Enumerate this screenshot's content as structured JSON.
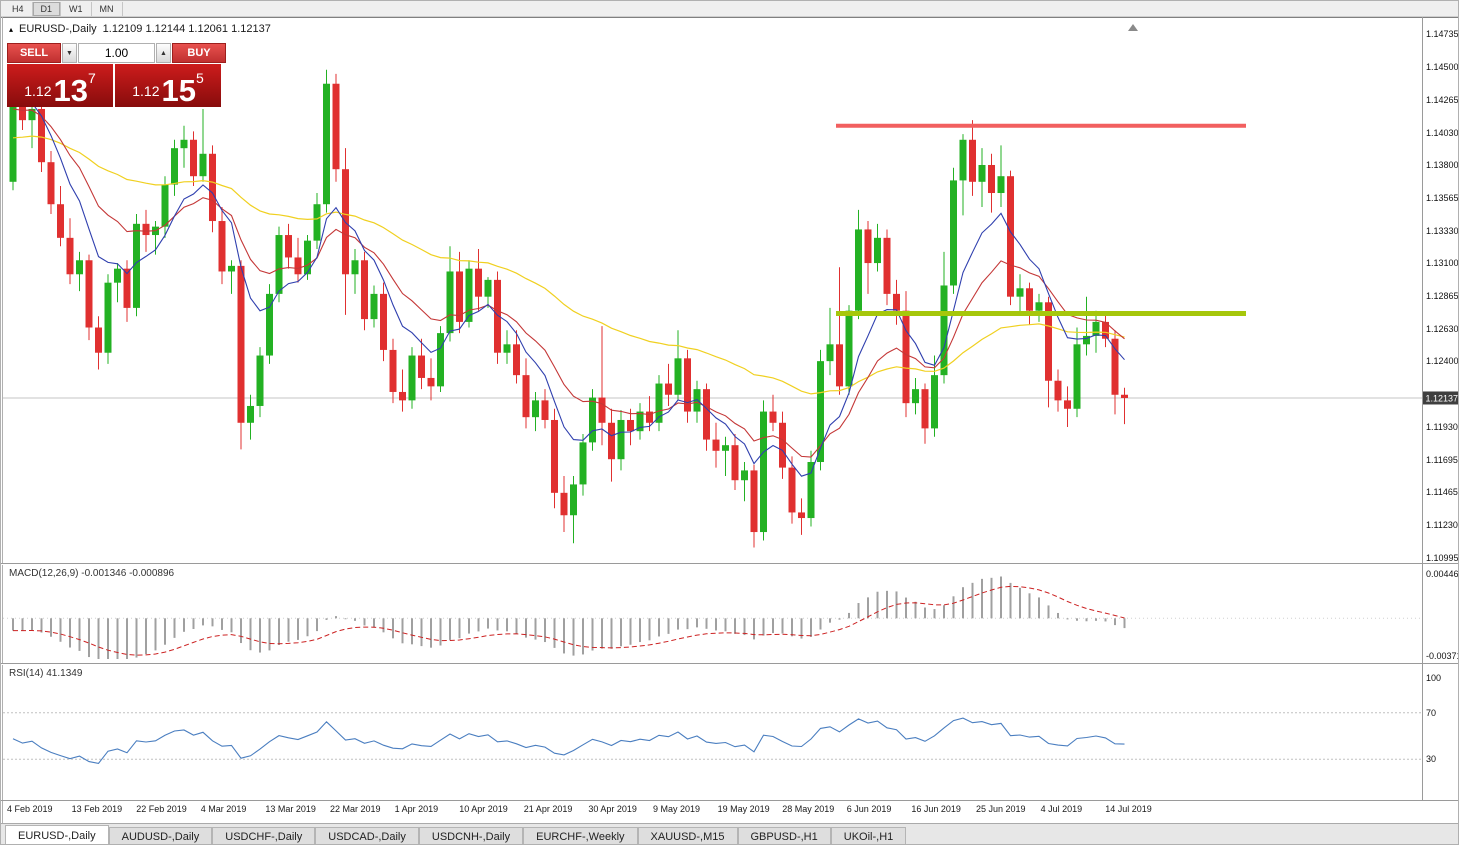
{
  "toolbar": {
    "timeframes": [
      {
        "label": "H4",
        "active": false
      },
      {
        "label": "D1",
        "active": true
      },
      {
        "label": "W1",
        "active": false
      },
      {
        "label": "MN",
        "active": false
      }
    ]
  },
  "chart": {
    "collapse_icon": "▴",
    "title": "EURUSD-,Daily",
    "ohlc": "1.12109 1.12144 1.12061 1.12137"
  },
  "trade_panel": {
    "sell_label": "SELL",
    "buy_label": "BUY",
    "volume": "1.00",
    "down_icon": "▼",
    "up_icon": "▲",
    "sell_quote": {
      "base": "1.12",
      "big": "13",
      "sup": "7"
    },
    "buy_quote": {
      "base": "1.12",
      "big": "15",
      "sup": "5"
    }
  },
  "price_axis": {
    "ticks": [
      "1.14735",
      "1.14500",
      "1.14265",
      "1.14030",
      "1.13800",
      "1.13565",
      "1.13330",
      "1.13100",
      "1.12865",
      "1.12630",
      "1.12400",
      "1.11930",
      "1.11695",
      "1.11465",
      "1.11230",
      "1.10995"
    ],
    "current_price": "1.12137"
  },
  "macd_panel": {
    "label": "MACD(12,26,9)",
    "value_main": "-0.001346",
    "value_signal": "-0.000896",
    "axis_top": "0.004465",
    "axis_bottom": "-0.003715"
  },
  "rsi_panel": {
    "label": "RSI(14)",
    "value": "41.1349",
    "axis_ticks": [
      "100",
      "70",
      "30"
    ]
  },
  "time_axis": {
    "labels": [
      "4 Feb 2019",
      "13 Feb 2019",
      "22 Feb 2019",
      "4 Mar 2019",
      "13 Mar 2019",
      "22 Mar 2019",
      "1 Apr 2019",
      "10 Apr 2019",
      "21 Apr 2019",
      "30 Apr 2019",
      "9 May 2019",
      "19 May 2019",
      "28 May 2019",
      "6 Jun 2019",
      "16 Jun 2019",
      "25 Jun 2019",
      "4 Jul 2019",
      "14 Jul 2019"
    ]
  },
  "tabs": [
    {
      "label": "EURUSD-,Daily",
      "active": true
    },
    {
      "label": "AUDUSD-,Daily",
      "active": false
    },
    {
      "label": "USDCHF-,Daily",
      "active": false
    },
    {
      "label": "USDCAD-,Daily",
      "active": false
    },
    {
      "label": "USDCNH-,Daily",
      "active": false
    },
    {
      "label": "EURCHF-,Weekly",
      "active": false
    },
    {
      "label": "XAUUSD-,M15",
      "active": false
    },
    {
      "label": "GBPUSD-,H1",
      "active": false
    },
    {
      "label": "UKOil-,H1",
      "active": false
    }
  ],
  "chart_data": {
    "type": "candlestick",
    "title": "EURUSD-,Daily",
    "ohlc_current": [
      1.12109,
      1.12144,
      1.12061,
      1.12137
    ],
    "bid": 1.12137,
    "ask": 1.12155,
    "ylim": [
      1.10995,
      1.14735
    ],
    "x_labels": [
      "4 Feb 2019",
      "13 Feb 2019",
      "22 Feb 2019",
      "4 Mar 2019",
      "13 Mar 2019",
      "22 Mar 2019",
      "1 Apr 2019",
      "10 Apr 2019",
      "21 Apr 2019",
      "30 Apr 2019",
      "9 May 2019",
      "19 May 2019",
      "28 May 2019",
      "6 Jun 2019",
      "16 Jun 2019",
      "25 Jun 2019",
      "4 Jul 2019",
      "14 Jul 2019"
    ],
    "horizontal_lines": [
      {
        "name": "resistance",
        "price": 1.1408,
        "color": "#f25f5f"
      },
      {
        "name": "support",
        "price": 1.1274,
        "color": "#a6c70b"
      }
    ],
    "ma_colors": {
      "fast": "#2f3fae",
      "medium": "#c43737",
      "slow": "#f0d020"
    },
    "candle_colors": {
      "up": "#23b123",
      "down": "#e03030"
    },
    "macd": {
      "params": [
        12,
        26,
        9
      ],
      "last_main": -0.001346,
      "last_signal": -0.000896,
      "axis_max": 0.004465,
      "axis_min": -0.003715,
      "histogram_color": "#a0a0a0",
      "signal_color": "#cc2222"
    },
    "rsi": {
      "period": 14,
      "last": 41.1349,
      "levels": [
        70,
        30
      ],
      "range": [
        0,
        100
      ],
      "line_color": "#4a7ec0"
    },
    "candles": [
      [
        1.1368,
        1.1442,
        1.1362,
        1.1435
      ],
      [
        1.1435,
        1.1443,
        1.1405,
        1.1412
      ],
      [
        1.1412,
        1.1425,
        1.1392,
        1.142
      ],
      [
        1.142,
        1.1428,
        1.1375,
        1.1382
      ],
      [
        1.1382,
        1.139,
        1.1345,
        1.1352
      ],
      [
        1.1352,
        1.1365,
        1.1322,
        1.1328
      ],
      [
        1.1328,
        1.1342,
        1.1295,
        1.1302
      ],
      [
        1.1302,
        1.1318,
        1.129,
        1.1312
      ],
      [
        1.1312,
        1.1316,
        1.1255,
        1.1264
      ],
      [
        1.1264,
        1.1272,
        1.1234,
        1.1246
      ],
      [
        1.1246,
        1.1302,
        1.1238,
        1.1296
      ],
      [
        1.1296,
        1.131,
        1.1282,
        1.1306
      ],
      [
        1.1306,
        1.1312,
        1.1268,
        1.1278
      ],
      [
        1.1278,
        1.1345,
        1.1272,
        1.1338
      ],
      [
        1.1338,
        1.1348,
        1.1318,
        1.133
      ],
      [
        1.133,
        1.134,
        1.1316,
        1.1336
      ],
      [
        1.1336,
        1.1372,
        1.1328,
        1.1366
      ],
      [
        1.1366,
        1.1398,
        1.1358,
        1.1392
      ],
      [
        1.1392,
        1.1408,
        1.1378,
        1.1398
      ],
      [
        1.1398,
        1.1404,
        1.1365,
        1.1372
      ],
      [
        1.1372,
        1.142,
        1.1368,
        1.1388
      ],
      [
        1.1388,
        1.1394,
        1.1332,
        1.134
      ],
      [
        1.134,
        1.135,
        1.1295,
        1.1304
      ],
      [
        1.1304,
        1.1312,
        1.1288,
        1.1308
      ],
      [
        1.1308,
        1.1312,
        1.1177,
        1.1196
      ],
      [
        1.1196,
        1.1216,
        1.1184,
        1.1208
      ],
      [
        1.1208,
        1.125,
        1.12,
        1.1244
      ],
      [
        1.1244,
        1.1295,
        1.1238,
        1.1288
      ],
      [
        1.1288,
        1.1336,
        1.1282,
        1.133
      ],
      [
        1.133,
        1.1338,
        1.1306,
        1.1314
      ],
      [
        1.1314,
        1.1328,
        1.1296,
        1.1302
      ],
      [
        1.1302,
        1.133,
        1.1298,
        1.1326
      ],
      [
        1.1326,
        1.136,
        1.132,
        1.1352
      ],
      [
        1.1352,
        1.1448,
        1.1346,
        1.1438
      ],
      [
        1.1438,
        1.1445,
        1.1368,
        1.1377
      ],
      [
        1.1377,
        1.1392,
        1.1273,
        1.1302
      ],
      [
        1.1302,
        1.132,
        1.1288,
        1.1312
      ],
      [
        1.1312,
        1.1318,
        1.1262,
        1.127
      ],
      [
        1.127,
        1.1294,
        1.1264,
        1.1288
      ],
      [
        1.1288,
        1.1296,
        1.124,
        1.1248
      ],
      [
        1.1248,
        1.1256,
        1.121,
        1.1218
      ],
      [
        1.1218,
        1.1234,
        1.1204,
        1.1212
      ],
      [
        1.1212,
        1.125,
        1.1206,
        1.1244
      ],
      [
        1.1244,
        1.1256,
        1.122,
        1.1228
      ],
      [
        1.1228,
        1.1242,
        1.1212,
        1.1222
      ],
      [
        1.1222,
        1.1265,
        1.1218,
        1.126
      ],
      [
        1.126,
        1.1322,
        1.1254,
        1.1304
      ],
      [
        1.1304,
        1.1318,
        1.126,
        1.1268
      ],
      [
        1.1268,
        1.1312,
        1.1264,
        1.1306
      ],
      [
        1.1306,
        1.132,
        1.1276,
        1.1286
      ],
      [
        1.1286,
        1.13,
        1.1278,
        1.1298
      ],
      [
        1.1298,
        1.1304,
        1.1238,
        1.1246
      ],
      [
        1.1246,
        1.1262,
        1.1238,
        1.1252
      ],
      [
        1.1252,
        1.1262,
        1.1224,
        1.123
      ],
      [
        1.123,
        1.1242,
        1.1192,
        1.12
      ],
      [
        1.12,
        1.1218,
        1.119,
        1.1212
      ],
      [
        1.1212,
        1.122,
        1.1192,
        1.1198
      ],
      [
        1.1198,
        1.1206,
        1.1135,
        1.1146
      ],
      [
        1.1146,
        1.1158,
        1.1118,
        1.113
      ],
      [
        1.113,
        1.1158,
        1.111,
        1.1152
      ],
      [
        1.1152,
        1.1188,
        1.1144,
        1.1182
      ],
      [
        1.1182,
        1.122,
        1.1176,
        1.1214
      ],
      [
        1.1214,
        1.1265,
        1.118,
        1.1196
      ],
      [
        1.1196,
        1.1206,
        1.1154,
        1.117
      ],
      [
        1.117,
        1.1205,
        1.1162,
        1.1198
      ],
      [
        1.1198,
        1.1206,
        1.118,
        1.119
      ],
      [
        1.119,
        1.121,
        1.1184,
        1.1204
      ],
      [
        1.1204,
        1.1215,
        1.119,
        1.1196
      ],
      [
        1.1196,
        1.123,
        1.119,
        1.1224
      ],
      [
        1.1224,
        1.1238,
        1.1208,
        1.1216
      ],
      [
        1.1216,
        1.1262,
        1.1212,
        1.1242
      ],
      [
        1.1242,
        1.1248,
        1.1196,
        1.1204
      ],
      [
        1.1204,
        1.1226,
        1.1196,
        1.122
      ],
      [
        1.122,
        1.1224,
        1.1176,
        1.1184
      ],
      [
        1.1184,
        1.1196,
        1.1164,
        1.1176
      ],
      [
        1.1176,
        1.1186,
        1.1158,
        1.118
      ],
      [
        1.118,
        1.1188,
        1.1148,
        1.1155
      ],
      [
        1.1155,
        1.1168,
        1.114,
        1.1162
      ],
      [
        1.1162,
        1.1166,
        1.1107,
        1.1118
      ],
      [
        1.1118,
        1.1212,
        1.1112,
        1.1204
      ],
      [
        1.1204,
        1.1216,
        1.119,
        1.1196
      ],
      [
        1.1196,
        1.1204,
        1.1156,
        1.1164
      ],
      [
        1.1164,
        1.1172,
        1.1124,
        1.1132
      ],
      [
        1.1132,
        1.1142,
        1.1116,
        1.1128
      ],
      [
        1.1128,
        1.1176,
        1.1122,
        1.1168
      ],
      [
        1.1168,
        1.1248,
        1.1162,
        1.124
      ],
      [
        1.124,
        1.1278,
        1.123,
        1.1252
      ],
      [
        1.1252,
        1.1307,
        1.1216,
        1.1222
      ],
      [
        1.1222,
        1.128,
        1.1216,
        1.1276
      ],
      [
        1.1276,
        1.1348,
        1.127,
        1.1334
      ],
      [
        1.1334,
        1.134,
        1.1288,
        1.131
      ],
      [
        1.131,
        1.1338,
        1.1304,
        1.1328
      ],
      [
        1.1328,
        1.1334,
        1.128,
        1.1288
      ],
      [
        1.1288,
        1.1298,
        1.1266,
        1.1276
      ],
      [
        1.1276,
        1.129,
        1.12,
        1.121
      ],
      [
        1.121,
        1.1228,
        1.1202,
        1.122
      ],
      [
        1.122,
        1.1224,
        1.1181,
        1.1192
      ],
      [
        1.1192,
        1.1244,
        1.1186,
        1.123
      ],
      [
        1.123,
        1.1318,
        1.1224,
        1.1294
      ],
      [
        1.1294,
        1.1378,
        1.1288,
        1.1369
      ],
      [
        1.1369,
        1.1402,
        1.1344,
        1.1398
      ],
      [
        1.1398,
        1.1412,
        1.1358,
        1.1368
      ],
      [
        1.1368,
        1.1392,
        1.135,
        1.138
      ],
      [
        1.138,
        1.1388,
        1.1346,
        1.136
      ],
      [
        1.136,
        1.1394,
        1.135,
        1.1372
      ],
      [
        1.1372,
        1.1376,
        1.128,
        1.1286
      ],
      [
        1.1286,
        1.1302,
        1.1274,
        1.1292
      ],
      [
        1.1292,
        1.1296,
        1.1266,
        1.1276
      ],
      [
        1.1276,
        1.1288,
        1.1268,
        1.1282
      ],
      [
        1.1282,
        1.1286,
        1.1207,
        1.1226
      ],
      [
        1.1226,
        1.1234,
        1.1204,
        1.1212
      ],
      [
        1.1212,
        1.1222,
        1.1193,
        1.1206
      ],
      [
        1.1206,
        1.1264,
        1.12,
        1.1252
      ],
      [
        1.1252,
        1.1286,
        1.1244,
        1.1258
      ],
      [
        1.1258,
        1.1276,
        1.1246,
        1.1268
      ],
      [
        1.1268,
        1.1275,
        1.125,
        1.1256
      ],
      [
        1.1256,
        1.1262,
        1.1202,
        1.1216
      ],
      [
        1.1216,
        1.1221,
        1.1195,
        1.12137
      ]
    ]
  }
}
